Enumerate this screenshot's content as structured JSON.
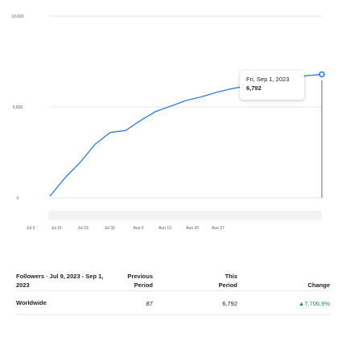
{
  "chart_data": {
    "type": "line",
    "y_ticks": [
      "10,000",
      "5,000",
      "0"
    ],
    "x_ticks": [
      "Jul 9",
      "Jul 16",
      "Jul 23",
      "Jul 30",
      "Aug 6",
      "Aug 13",
      "Aug 20",
      "Aug 27"
    ],
    "ylim": [
      0,
      10000
    ],
    "grid": true,
    "color": "#1a73e8",
    "x": [
      "Jul 9",
      "Jul 12",
      "Jul 15",
      "Jul 18",
      "Jul 21",
      "Jul 24",
      "Jul 27",
      "Jul 30",
      "Aug 2",
      "Aug 5",
      "Aug 8",
      "Aug 11",
      "Aug 14",
      "Aug 17",
      "Aug 20",
      "Aug 23",
      "Aug 26",
      "Aug 29",
      "Sep 1"
    ],
    "values": [
      87,
      1100,
      1950,
      2950,
      3600,
      3700,
      4250,
      4750,
      5050,
      5350,
      5550,
      5800,
      6000,
      6150,
      6300,
      6450,
      6600,
      6720,
      6792
    ]
  },
  "tooltip": {
    "date": "Fri, Sep 1, 2023",
    "value": "6,792"
  },
  "summary": {
    "header": {
      "left": "Followers · Jul 9, 2023 - Sep 1, 2023",
      "previous_line1": "Previous",
      "previous_line2": "Period",
      "this_line1": "This",
      "this_line2": "Period",
      "change": "Change"
    },
    "rows": [
      {
        "label": "Worldwide",
        "previous": "87",
        "this": "6,792",
        "change": "▲7,706.9%"
      }
    ]
  },
  "colors": {
    "line": "#1a73e8",
    "positive": "#1e8e3e",
    "grid": "#dadce0"
  }
}
